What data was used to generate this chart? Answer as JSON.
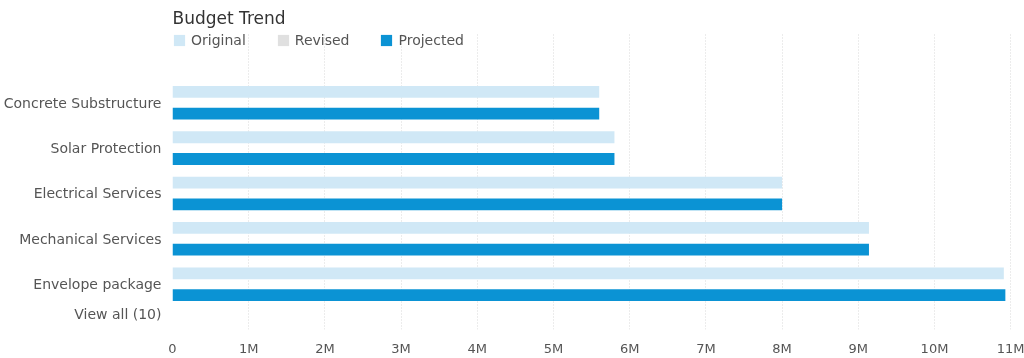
{
  "chart_data": {
    "type": "bar",
    "orientation": "horizontal",
    "title": "Budget Trend",
    "categories": [
      "Concrete Substructure",
      "Solar Protection",
      "Electrical Services",
      "Mechanical Services",
      "Envelope package"
    ],
    "series": [
      {
        "name": "Original",
        "color": "#d0e8f6",
        "values": [
          5.6,
          5.8,
          8.0,
          9.14,
          10.91
        ]
      },
      {
        "name": "Revised",
        "color": "#e0e0e0",
        "values": [
          null,
          null,
          null,
          null,
          null
        ]
      },
      {
        "name": "Projected",
        "color": "#0b93d4",
        "values": [
          5.6,
          5.8,
          8.0,
          9.14,
          10.93
        ]
      }
    ],
    "xlim": [
      0,
      11.05
    ],
    "xticks": [
      0,
      {
        "value": 1,
        "label": "1M"
      },
      {
        "value": 2,
        "label": "2M"
      },
      {
        "value": 3,
        "label": "3M"
      },
      {
        "value": 4,
        "label": "4M"
      },
      {
        "value": 5,
        "label": "5M"
      },
      {
        "value": 6,
        "label": "6M"
      },
      {
        "value": 7,
        "label": "7M"
      },
      {
        "value": 8,
        "label": "8M"
      },
      {
        "value": 9,
        "label": "9M"
      },
      {
        "value": 10,
        "label": "10M"
      },
      {
        "value": 11,
        "label": "11M"
      }
    ],
    "grid": "x",
    "legend": "top left",
    "annotations": [
      "View all (10)"
    ]
  }
}
